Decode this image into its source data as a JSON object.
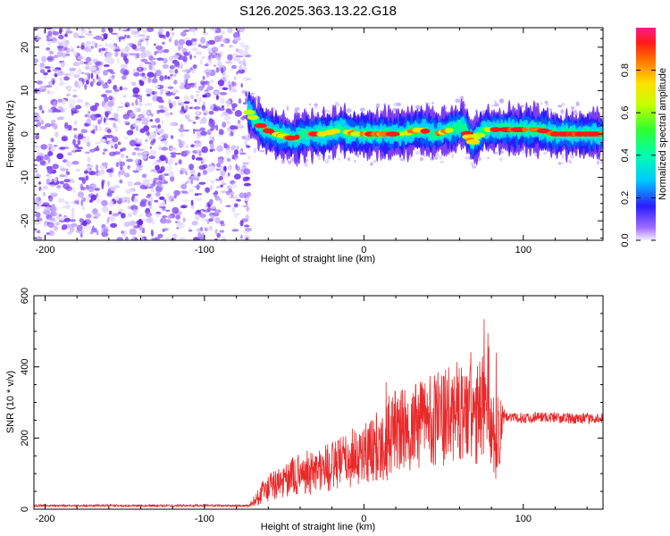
{
  "figure": {
    "title": "S126.2025.363.13.22.G18"
  },
  "chart_data": [
    {
      "type": "heatmap",
      "xlabel": "Height of straight line (km)",
      "ylabel": "Frequency (Hz)",
      "xlim": [
        -207,
        150
      ],
      "ylim": [
        -24.5,
        24.5
      ],
      "xticks": [
        -200,
        -100,
        0,
        100
      ],
      "yticks": [
        -20,
        -10,
        0,
        10,
        20
      ],
      "noise_region_x": [
        -207,
        -72
      ],
      "signal_start_x": -72,
      "ridge": [
        {
          "x": -72,
          "y": 5
        },
        {
          "x": -68,
          "y": 3
        },
        {
          "x": -62,
          "y": 1
        },
        {
          "x": -55,
          "y": 0
        },
        {
          "x": -45,
          "y": -1
        },
        {
          "x": -35,
          "y": 0
        },
        {
          "x": -25,
          "y": 0
        },
        {
          "x": -15,
          "y": 1
        },
        {
          "x": -5,
          "y": 0
        },
        {
          "x": 5,
          "y": 0
        },
        {
          "x": 15,
          "y": 0
        },
        {
          "x": 25,
          "y": 0
        },
        {
          "x": 35,
          "y": 1
        },
        {
          "x": 45,
          "y": 0
        },
        {
          "x": 55,
          "y": 1
        },
        {
          "x": 62,
          "y": 2
        },
        {
          "x": 68,
          "y": -2
        },
        {
          "x": 75,
          "y": 1
        },
        {
          "x": 80,
          "y": 1
        },
        {
          "x": 90,
          "y": 1
        },
        {
          "x": 100,
          "y": 1
        },
        {
          "x": 110,
          "y": 1
        },
        {
          "x": 120,
          "y": 0
        },
        {
          "x": 130,
          "y": 0
        },
        {
          "x": 140,
          "y": 0
        },
        {
          "x": 150,
          "y": 0
        }
      ],
      "colorbar": {
        "label": "Normalized spectral amplitude",
        "range": [
          0,
          1
        ],
        "ticks": [
          0.0,
          0.2,
          0.4,
          0.6,
          0.8
        ],
        "tick_labels": [
          "0.0",
          "0.2",
          "0.4",
          "0.6",
          "0.8"
        ]
      }
    },
    {
      "type": "line",
      "xlabel": "Height of straight line (km)",
      "ylabel": "SNR (10 * v/v)",
      "xlim": [
        -207,
        150
      ],
      "ylim": [
        0,
        600
      ],
      "xticks": [
        -200,
        -100,
        0,
        100
      ],
      "yticks": [
        0,
        200,
        400,
        600
      ],
      "line_color": "#e8292a",
      "series": [
        {
          "x": [
            -207,
            -150,
            -100,
            -72,
            -65,
            -60,
            -50,
            -40,
            -30,
            -20,
            -10,
            0,
            10,
            15,
            20,
            30,
            40,
            50,
            60,
            70,
            75,
            78,
            80,
            85,
            88,
            95,
            110,
            130,
            150
          ],
          "y": [
            10,
            10,
            10,
            10,
            40,
            60,
            80,
            100,
            110,
            120,
            140,
            160,
            180,
            200,
            220,
            220,
            260,
            250,
            280,
            250,
            300,
            350,
            220,
            200,
            265,
            255,
            260,
            255,
            255
          ],
          "noise_amplitude": [
            3,
            3,
            3,
            3,
            30,
            40,
            50,
            60,
            70,
            70,
            80,
            90,
            100,
            120,
            120,
            120,
            130,
            140,
            140,
            150,
            150,
            150,
            150,
            120,
            15,
            15,
            15,
            15,
            15
          ]
        }
      ]
    }
  ]
}
